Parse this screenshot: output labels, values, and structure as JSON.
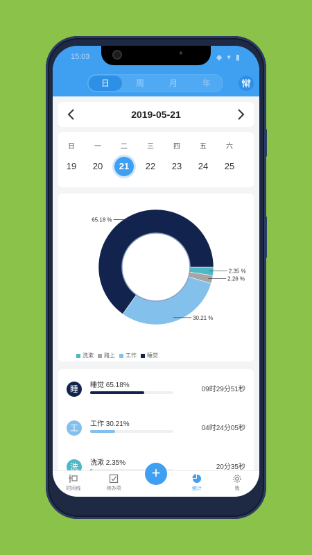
{
  "status": {
    "time": "15:03",
    "icons": "◆ ▾ ▮"
  },
  "header": {
    "tabs": [
      {
        "label": "日",
        "active": true
      },
      {
        "label": "周"
      },
      {
        "label": "月"
      },
      {
        "label": "年"
      }
    ]
  },
  "date_nav": {
    "date": "2019-05-21"
  },
  "week": {
    "labels": [
      "日",
      "一",
      "二",
      "三",
      "四",
      "五",
      "六"
    ],
    "days": [
      "19",
      "20",
      "21",
      "22",
      "23",
      "24",
      "25"
    ],
    "selected": "21"
  },
  "chart_data": {
    "type": "pie",
    "donut": true,
    "slices": [
      {
        "name": "洗漱",
        "value": 2.35,
        "label": "2.35 %",
        "color": "#4fb8c6"
      },
      {
        "name": "路上",
        "value": 2.26,
        "label": "2.26 %",
        "color": "#a6a6a6"
      },
      {
        "name": "工作",
        "value": 30.21,
        "label": "30.21 %",
        "color": "#84c0ec"
      },
      {
        "name": "睡觉",
        "value": 65.18,
        "label": "65.18 %",
        "color": "#12244d"
      }
    ],
    "legend": [
      "洗漱",
      "路上",
      "工作",
      "睡觉"
    ],
    "legend_position": "bottom-left"
  },
  "list": [
    {
      "avatar": "睡",
      "label": "睡觉 65.18%",
      "percent": 65.18,
      "time": "09时29分51秒",
      "color": "#12244d"
    },
    {
      "avatar": "工",
      "label": "工作 30.21%",
      "percent": 30.21,
      "time": "04时24分05秒",
      "color": "#84c0ec"
    },
    {
      "avatar": "洗",
      "label": "洗漱 2.35%",
      "percent": 2.35,
      "time": "20分35秒",
      "color": "#4fb8c6"
    }
  ],
  "tabs": [
    {
      "label": "时间线",
      "icon": "timeline-icon"
    },
    {
      "label": "待办项",
      "icon": "checkbox-icon"
    },
    {
      "label": "",
      "icon": "plus-icon"
    },
    {
      "label": "统计",
      "icon": "pie-chart-icon",
      "active": true
    },
    {
      "label": "我",
      "icon": "gear-icon"
    }
  ]
}
